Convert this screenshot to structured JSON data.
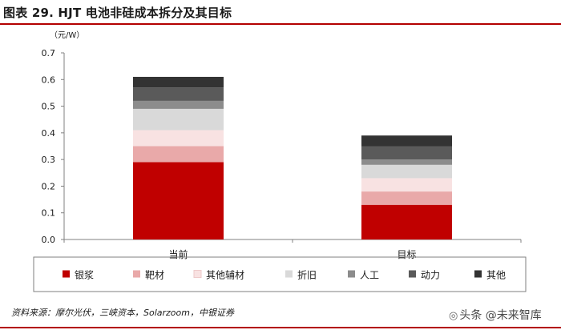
{
  "header": {
    "title": "图表 29. HJT 电池非硅成本拆分及其目标"
  },
  "chart_data": {
    "type": "bar",
    "stacked": true,
    "unit_label": "（元/W）",
    "categories": [
      "当前",
      "目标"
    ],
    "ylim": [
      0,
      0.7
    ],
    "yticks": [
      "0.0",
      "0.1",
      "0.2",
      "0.3",
      "0.4",
      "0.5",
      "0.6",
      "0.7"
    ],
    "series": [
      {
        "name": "银浆",
        "color": "#c00000",
        "values": [
          0.29,
          0.13
        ]
      },
      {
        "name": "靶材",
        "color": "#e9a9a9",
        "values": [
          0.06,
          0.05
        ]
      },
      {
        "name": "其他辅材",
        "color": "#f8e2e2",
        "values": [
          0.06,
          0.05
        ]
      },
      {
        "name": "折旧",
        "color": "#d9d9d9",
        "values": [
          0.08,
          0.05
        ]
      },
      {
        "name": "人工",
        "color": "#8c8c8c",
        "values": [
          0.03,
          0.02
        ]
      },
      {
        "name": "动力",
        "color": "#5a5a5a",
        "values": [
          0.05,
          0.05
        ]
      },
      {
        "name": "其他",
        "color": "#333333",
        "values": [
          0.04,
          0.04
        ]
      }
    ],
    "grid": false,
    "legend_position": "bottom"
  },
  "source": "资料来源：摩尔光伏，三峡资本，Solarzoom，中银证券",
  "watermark": "头条 @未来智库"
}
